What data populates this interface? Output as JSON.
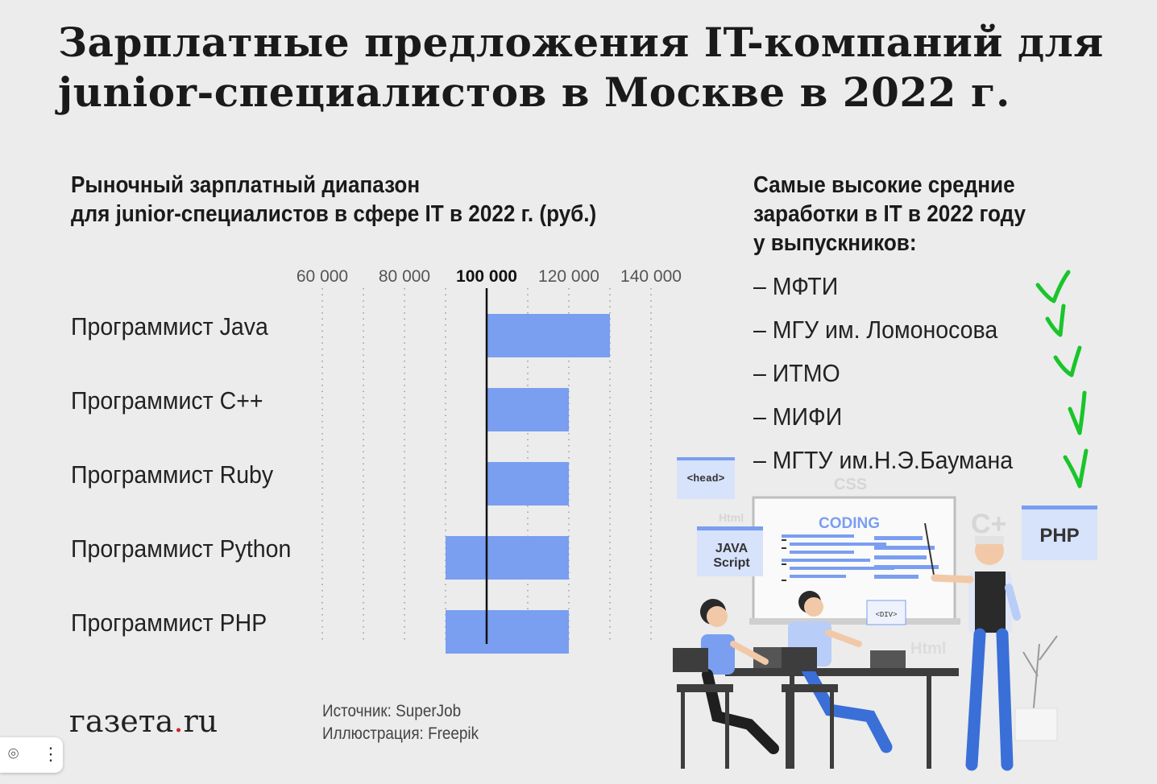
{
  "title": "Зарплатные предложения IT-компаний для junior-специалистов в Москве в 2022 г.",
  "chart_subtitle_line1": "Рыночный зарплатный диапазон",
  "chart_subtitle_line2": "для junior-специалистов в сфере IT в 2022 г. (руб.)",
  "chart_data": {
    "type": "bar",
    "subtype": "floating-range",
    "title": "Рыночный зарплатный диапазон для junior-специалистов в сфере IT в 2022 г. (руб.)",
    "xlim": [
      60000,
      140000
    ],
    "x_ticks": [
      "60 000",
      "80 000",
      "100 000",
      "120 000",
      "140 000"
    ],
    "x_tick_values": [
      60000,
      80000,
      100000,
      120000,
      140000
    ],
    "highlight_tick": 100000,
    "grid": "dotted-vertical",
    "categories": [
      "Программист Java",
      "Программист C++",
      "Программист Ruby",
      "Программист Python",
      "Программист PHP"
    ],
    "ranges": [
      [
        100000,
        130000
      ],
      [
        100000,
        120000
      ],
      [
        100000,
        120000
      ],
      [
        90000,
        120000
      ],
      [
        90000,
        120000
      ]
    ],
    "bar_color": "#7a9ef0"
  },
  "right_title_line1": "Самые высокие средние",
  "right_title_line2": "заработки в IT в 2022 году",
  "right_title_line3": "у выпускников:",
  "universities": [
    "– МФТИ",
    "– МГУ им. Ломоносова",
    "– ИТМО",
    "– МИФИ",
    "– МГТУ им.Н.Э.Баумана"
  ],
  "checkmark_color": "#19c52b",
  "logo_main": "газета",
  "logo_dot": ".",
  "logo_tld": "ru",
  "source": "Источник: SuperJob",
  "illustration_credit": "Иллюстрация: Freepik",
  "illustration": {
    "board_label": "CODING",
    "tag_head": "<head>",
    "tag_js_line1": "JAVA",
    "tag_js_line2": "Script",
    "tag_php": "PHP",
    "tag_div": "<DIV>",
    "tag_css": "CSS",
    "tag_html": "Html",
    "tag_cpp": "C+"
  }
}
